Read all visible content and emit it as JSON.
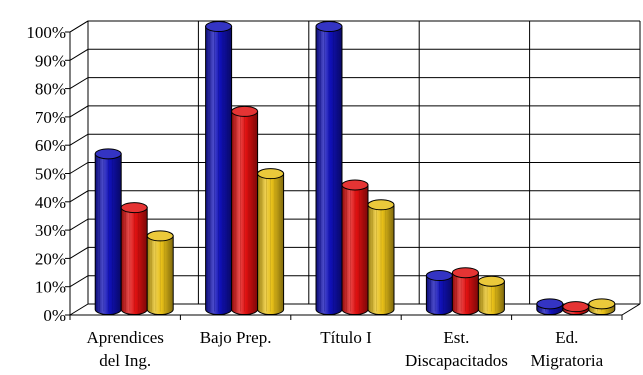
{
  "chart_data": {
    "type": "bar",
    "title": "",
    "xlabel": "",
    "ylabel": "",
    "ylim": [
      0,
      100
    ],
    "y_ticks": [
      "0%",
      "10%",
      "20%",
      "30%",
      "40%",
      "50%",
      "60%",
      "70%",
      "80%",
      "90%",
      "100%"
    ],
    "categories": [
      [
        "Aprendices",
        "del Ing."
      ],
      [
        "Bajo Prep."
      ],
      [
        "Título I"
      ],
      [
        "Est.",
        "Discapacitados"
      ],
      [
        "Ed.",
        "Migratoria"
      ]
    ],
    "series": [
      {
        "color": "#1010b8",
        "values": [
          55,
          100,
          100,
          12,
          2
        ]
      },
      {
        "color": "#e01010",
        "values": [
          36,
          70,
          44,
          13,
          1
        ]
      },
      {
        "color": "#e8c018",
        "values": [
          26,
          48,
          37,
          10,
          2
        ]
      }
    ],
    "grid": true,
    "legend": "none"
  }
}
